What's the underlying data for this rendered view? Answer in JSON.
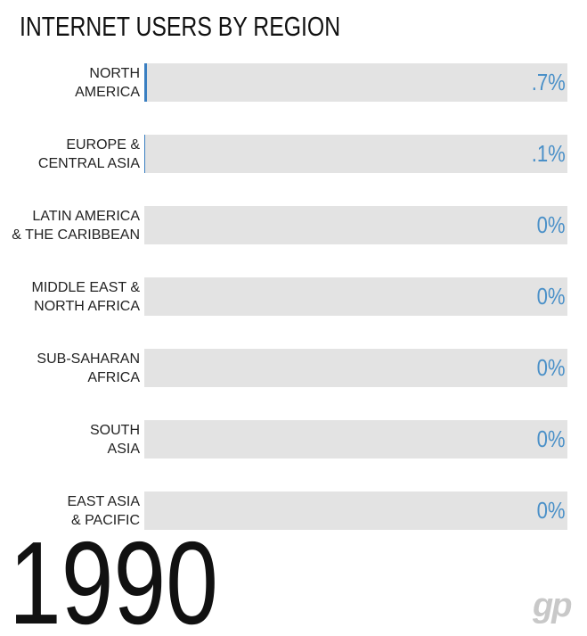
{
  "chart_data": {
    "type": "bar",
    "orientation": "horizontal",
    "title": "INTERNET USERS BY REGION",
    "categories": [
      "NORTH\nAMERICA",
      "EUROPE &\nCENTRAL ASIA",
      "LATIN AMERICA\n& THE CARIBBEAN",
      "MIDDLE EAST &\nNORTH AFRICA",
      "SUB-SAHARAN\nAFRICA",
      "SOUTH\nASIA",
      "EAST ASIA\n& PACIFIC"
    ],
    "values": [
      0.7,
      0.1,
      0,
      0,
      0,
      0,
      0
    ],
    "value_labels": [
      ".7%",
      ".1%",
      "0%",
      "0%",
      "0%",
      "0%",
      "0%"
    ],
    "xlim": [
      0,
      100
    ],
    "color": "#3a7fc1",
    "annotation": "1990",
    "logo": "gp"
  }
}
